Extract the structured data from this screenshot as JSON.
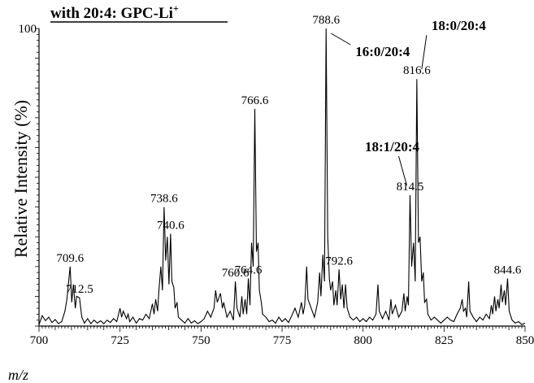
{
  "chart_data": {
    "type": "line",
    "title": "with 20:4: GPC-Li",
    "title_superscript": "+",
    "xlabel": "m/z",
    "ylabel": "Relative Intensity (%)",
    "xlim": [
      700,
      850
    ],
    "ylim": [
      0,
      100
    ],
    "x_ticks": [
      700,
      725,
      750,
      775,
      800,
      825,
      850
    ],
    "y_ticks": [
      100
    ],
    "grid": false,
    "series": [
      {
        "values": [
          [
            700,
            0.5
          ],
          [
            701,
            3.5
          ],
          [
            702,
            1.8
          ],
          [
            703,
            3
          ],
          [
            704,
            1.2
          ],
          [
            705,
            2.2
          ],
          [
            706,
            0.8
          ],
          [
            707,
            1.5
          ],
          [
            708,
            5
          ],
          [
            708.6,
            9
          ],
          [
            709.6,
            20
          ],
          [
            710.1,
            8
          ],
          [
            710.6,
            14
          ],
          [
            711.2,
            6
          ],
          [
            711.6,
            10
          ],
          [
            712.5,
            9.5
          ],
          [
            713.2,
            3
          ],
          [
            714,
            1
          ],
          [
            715,
            2.5
          ],
          [
            716,
            0.8
          ],
          [
            717,
            2
          ],
          [
            718,
            1
          ],
          [
            719,
            1.8
          ],
          [
            720,
            0.8
          ],
          [
            721,
            2
          ],
          [
            722,
            1.2
          ],
          [
            723,
            2.5
          ],
          [
            724,
            1.5
          ],
          [
            725,
            6
          ],
          [
            725.5,
            3
          ],
          [
            726,
            5
          ],
          [
            727,
            2.5
          ],
          [
            727.5,
            4
          ],
          [
            728,
            1.5
          ],
          [
            729,
            3
          ],
          [
            730,
            1
          ],
          [
            731,
            2.5
          ],
          [
            732,
            2
          ],
          [
            733,
            4
          ],
          [
            734,
            2.5
          ],
          [
            735,
            7.5
          ],
          [
            735.5,
            4
          ],
          [
            736,
            9
          ],
          [
            736.6,
            5
          ],
          [
            737,
            12
          ],
          [
            737.6,
            20
          ],
          [
            738.1,
            12
          ],
          [
            738.6,
            40
          ],
          [
            739.1,
            22
          ],
          [
            739.6,
            30
          ],
          [
            740.1,
            14
          ],
          [
            740.6,
            31
          ],
          [
            741,
            15
          ],
          [
            741.6,
            13
          ],
          [
            742,
            6
          ],
          [
            742.6,
            8
          ],
          [
            743,
            3
          ],
          [
            744,
            2
          ],
          [
            745,
            1
          ],
          [
            746,
            2.5
          ],
          [
            747,
            1
          ],
          [
            748,
            1.8
          ],
          [
            749,
            0.8
          ],
          [
            750,
            1.5
          ],
          [
            751,
            2.5
          ],
          [
            752,
            5
          ],
          [
            753,
            3
          ],
          [
            754,
            6
          ],
          [
            754.5,
            12
          ],
          [
            755,
            8
          ],
          [
            756,
            11
          ],
          [
            756.6,
            6
          ],
          [
            757,
            8
          ],
          [
            758,
            3
          ],
          [
            759,
            5
          ],
          [
            760,
            2
          ],
          [
            760.6,
            15
          ],
          [
            761.1,
            6
          ],
          [
            762,
            3
          ],
          [
            762.6,
            10
          ],
          [
            763,
            4
          ],
          [
            763.6,
            9
          ],
          [
            764.1,
            4
          ],
          [
            764.6,
            16
          ],
          [
            765.1,
            7
          ],
          [
            765.6,
            28
          ],
          [
            766.1,
            20
          ],
          [
            766.6,
            73
          ],
          [
            767.1,
            25
          ],
          [
            767.6,
            28
          ],
          [
            768,
            12
          ],
          [
            768.6,
            8
          ],
          [
            769,
            4
          ],
          [
            770,
            3
          ],
          [
            771,
            1.5
          ],
          [
            772,
            2
          ],
          [
            773,
            1
          ],
          [
            774,
            3
          ],
          [
            775,
            1.5
          ],
          [
            776,
            2.5
          ],
          [
            777,
            1.2
          ],
          [
            778,
            3.5
          ],
          [
            779,
            6
          ],
          [
            780,
            3
          ],
          [
            781,
            8
          ],
          [
            781.5,
            4
          ],
          [
            782,
            7
          ],
          [
            782.6,
            20
          ],
          [
            783,
            9
          ],
          [
            784,
            6
          ],
          [
            785,
            3
          ],
          [
            786,
            8
          ],
          [
            786.6,
            18
          ],
          [
            787,
            10
          ],
          [
            787.6,
            24
          ],
          [
            788.1,
            15
          ],
          [
            788.6,
            100
          ],
          [
            789.1,
            30
          ],
          [
            789.6,
            16
          ],
          [
            790,
            12
          ],
          [
            790.6,
            15
          ],
          [
            791,
            7
          ],
          [
            791.6,
            12
          ],
          [
            792,
            7
          ],
          [
            792.6,
            19
          ],
          [
            793.1,
            9
          ],
          [
            793.6,
            14
          ],
          [
            794.1,
            6
          ],
          [
            794.6,
            14
          ],
          [
            795.1,
            6
          ],
          [
            796,
            3
          ],
          [
            797,
            2
          ],
          [
            798,
            3
          ],
          [
            799,
            1.5
          ],
          [
            800,
            2.5
          ],
          [
            801,
            1.5
          ],
          [
            802,
            3
          ],
          [
            803,
            2
          ],
          [
            804,
            4
          ],
          [
            804.6,
            14
          ],
          [
            805,
            5
          ],
          [
            806,
            2.5
          ],
          [
            807,
            5
          ],
          [
            808,
            2
          ],
          [
            808.6,
            9
          ],
          [
            809,
            4
          ],
          [
            810,
            7
          ],
          [
            811,
            3
          ],
          [
            812,
            5
          ],
          [
            812.6,
            11
          ],
          [
            813,
            5
          ],
          [
            813.6,
            10
          ],
          [
            814,
            7
          ],
          [
            814.5,
            44
          ],
          [
            815,
            20
          ],
          [
            815.6,
            28
          ],
          [
            816.1,
            15
          ],
          [
            816.6,
            83
          ],
          [
            817.1,
            28
          ],
          [
            817.6,
            30
          ],
          [
            818.1,
            15
          ],
          [
            818.6,
            18
          ],
          [
            819,
            8
          ],
          [
            819.6,
            9
          ],
          [
            820,
            4
          ],
          [
            821,
            2
          ],
          [
            822,
            3
          ],
          [
            823,
            2
          ],
          [
            824,
            1
          ],
          [
            825,
            2
          ],
          [
            826,
            3
          ],
          [
            827,
            2
          ],
          [
            828,
            1.5
          ],
          [
            829,
            4
          ],
          [
            830,
            6
          ],
          [
            830.6,
            9
          ],
          [
            831,
            5
          ],
          [
            831.6,
            6
          ],
          [
            832,
            3
          ],
          [
            832.6,
            15
          ],
          [
            833,
            5
          ],
          [
            834,
            3
          ],
          [
            835,
            1.5
          ],
          [
            836,
            3
          ],
          [
            837,
            2
          ],
          [
            838,
            4
          ],
          [
            839,
            2.5
          ],
          [
            839.6,
            7
          ],
          [
            840,
            4
          ],
          [
            840.6,
            10
          ],
          [
            841,
            5
          ],
          [
            841.6,
            9
          ],
          [
            842,
            6
          ],
          [
            842.6,
            14
          ],
          [
            843,
            8
          ],
          [
            843.6,
            12
          ],
          [
            844,
            7
          ],
          [
            844.6,
            16
          ],
          [
            845.1,
            5
          ],
          [
            846,
            2
          ],
          [
            847,
            1
          ],
          [
            848,
            1.5
          ],
          [
            849,
            0.5
          ],
          [
            850,
            1
          ]
        ]
      }
    ],
    "peak_labels": [
      {
        "text": "709.6",
        "x": 709.6,
        "y": 20
      },
      {
        "text": "712.5",
        "x": 712.5,
        "y": 9.5
      },
      {
        "text": "738.6",
        "x": 738.6,
        "y": 40
      },
      {
        "text": "740.6",
        "x": 740.6,
        "y": 31
      },
      {
        "text": "760.6",
        "x": 760.6,
        "y": 15
      },
      {
        "text": "764.6",
        "x": 764.6,
        "y": 16
      },
      {
        "text": "766.6",
        "x": 766.6,
        "y": 73
      },
      {
        "text": "788.6",
        "x": 788.6,
        "y": 100
      },
      {
        "text": "792.6",
        "x": 792.6,
        "y": 19
      },
      {
        "text": "814.5",
        "x": 814.5,
        "y": 44
      },
      {
        "text": "816.6",
        "x": 816.6,
        "y": 83
      },
      {
        "text": "844.6",
        "x": 844.6,
        "y": 16
      }
    ],
    "annotations": [
      {
        "text": "16:0/20:4",
        "target_x": 788.6,
        "target_y": 100
      },
      {
        "text": "18:0/20:4",
        "target_x": 816.6,
        "target_y": 83
      },
      {
        "text": "18:1/20:4",
        "target_x": 814.5,
        "target_y": 44
      }
    ]
  }
}
